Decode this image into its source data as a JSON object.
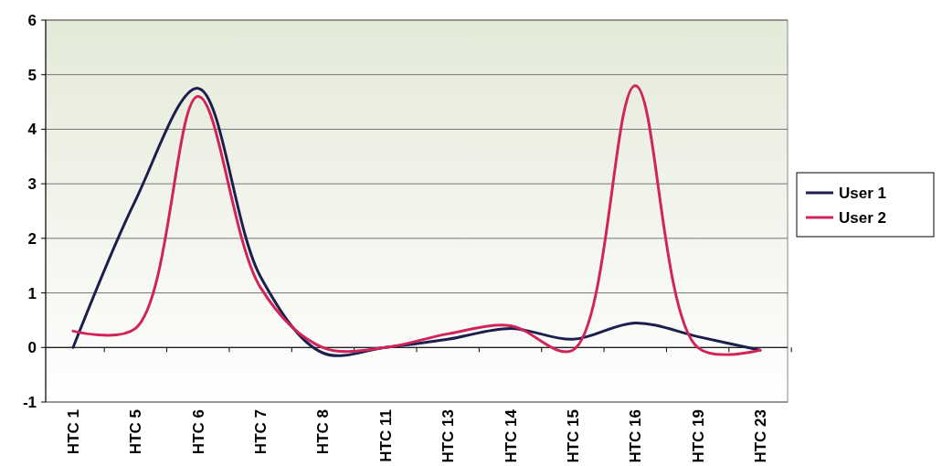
{
  "chart_data": {
    "type": "line",
    "categories": [
      "HTC 1",
      "HTC 5",
      "HTC 6",
      "HTC 7",
      "HTC 8",
      "HTC 11",
      "HTC 13",
      "HTC 14",
      "HTC 15",
      "HTC 16",
      "HTC 19",
      "HTC 23"
    ],
    "series": [
      {
        "name": "User 1",
        "color": "#1c1f4c",
        "values": [
          0,
          2.7,
          4.75,
          1.3,
          -0.1,
          0,
          0.15,
          0.35,
          0.15,
          0.45,
          0.2,
          -0.05
        ]
      },
      {
        "name": "User 2",
        "color": "#d0245a",
        "values": [
          0.3,
          0.35,
          4.6,
          1.1,
          0,
          0,
          0.25,
          0.4,
          -0.05,
          4.8,
          0,
          -0.05
        ]
      }
    ],
    "ylim": [
      -1,
      6
    ],
    "yticks": [
      -1,
      0,
      1,
      2,
      3,
      4,
      5,
      6
    ],
    "grid": "y",
    "legend": "right",
    "marker": "none",
    "line_style": "solid"
  }
}
